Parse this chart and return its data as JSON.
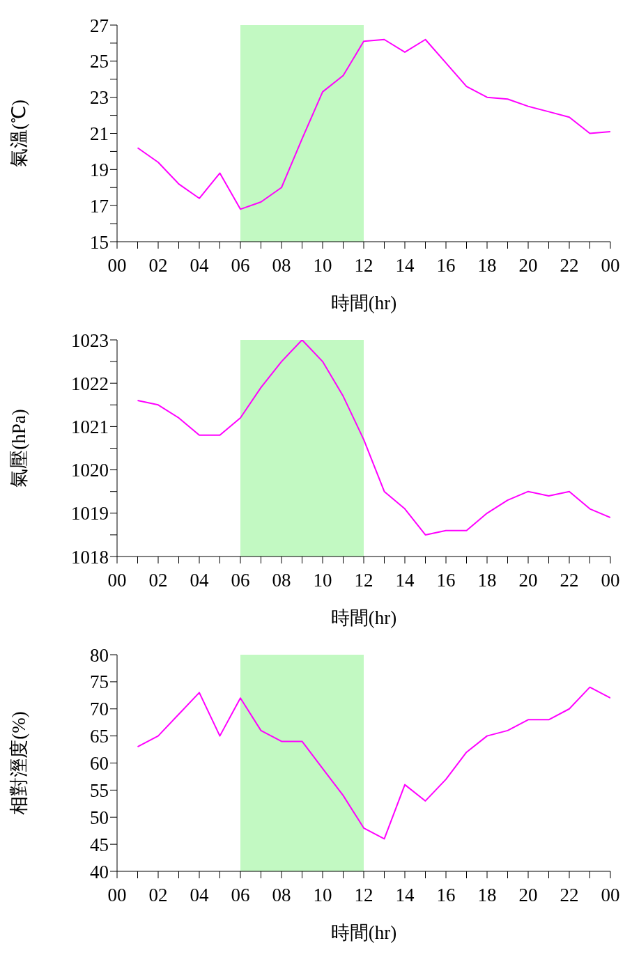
{
  "chart_data": [
    {
      "type": "line",
      "xlabel": "時間(hr)",
      "ylabel": "氣溫(℃)",
      "color": "#ff00ff",
      "marker": "none",
      "grid": false,
      "legend": false,
      "x": [
        1,
        2,
        3,
        4,
        5,
        6,
        7,
        8,
        9,
        10,
        11,
        12,
        13,
        14,
        15,
        16,
        17,
        18,
        19,
        20,
        21,
        22,
        23,
        24
      ],
      "values": [
        20.2,
        19.4,
        18.2,
        17.4,
        18.8,
        16.8,
        17.2,
        18.0,
        20.7,
        23.3,
        24.2,
        26.1,
        26.2,
        25.5,
        26.2,
        24.9,
        23.6,
        23.0,
        22.9,
        22.5,
        22.2,
        21.9,
        21.0,
        21.1
      ],
      "xlim": [
        0,
        24
      ],
      "xticks": [
        {
          "value": 0,
          "label": "00"
        },
        {
          "value": 1,
          "label": null
        },
        {
          "value": 2,
          "label": "02"
        },
        {
          "value": 3,
          "label": null
        },
        {
          "value": 4,
          "label": "04"
        },
        {
          "value": 5,
          "label": null
        },
        {
          "value": 6,
          "label": "06"
        },
        {
          "value": 7,
          "label": null
        },
        {
          "value": 8,
          "label": "08"
        },
        {
          "value": 9,
          "label": null
        },
        {
          "value": 10,
          "label": "10"
        },
        {
          "value": 11,
          "label": null
        },
        {
          "value": 12,
          "label": "12"
        },
        {
          "value": 13,
          "label": null
        },
        {
          "value": 14,
          "label": "14"
        },
        {
          "value": 15,
          "label": null
        },
        {
          "value": 16,
          "label": "16"
        },
        {
          "value": 17,
          "label": null
        },
        {
          "value": 18,
          "label": "18"
        },
        {
          "value": 19,
          "label": null
        },
        {
          "value": 20,
          "label": "20"
        },
        {
          "value": 21,
          "label": null
        },
        {
          "value": 22,
          "label": "22"
        },
        {
          "value": 23,
          "label": null
        },
        {
          "value": 24,
          "label": "00"
        }
      ],
      "ylim": [
        15,
        27
      ],
      "yticks": [
        15,
        {
          "value": 16,
          "label": null
        },
        17,
        {
          "value": 18,
          "label": null
        },
        19,
        {
          "value": 20,
          "label": null
        },
        21,
        {
          "value": 22,
          "label": null
        },
        23,
        {
          "value": 24,
          "label": null
        },
        25,
        {
          "value": 26,
          "label": null
        },
        27
      ],
      "bands": [
        {
          "axis": "x",
          "from": 6,
          "to": 12,
          "color": "#99f599"
        }
      ]
    },
    {
      "type": "line",
      "xlabel": "時間(hr)",
      "ylabel": "氣壓(hPa)",
      "color": "#ff00ff",
      "marker": "none",
      "grid": false,
      "legend": false,
      "x": [
        1,
        2,
        3,
        4,
        5,
        6,
        7,
        8,
        9,
        10,
        11,
        12,
        13,
        14,
        15,
        16,
        17,
        18,
        19,
        20,
        21,
        22,
        23,
        24
      ],
      "values": [
        1021.6,
        1021.5,
        1021.2,
        1020.8,
        1020.8,
        1021.2,
        1021.9,
        1022.5,
        1023.0,
        1022.5,
        1021.7,
        1020.7,
        1019.5,
        1019.1,
        1018.5,
        1018.6,
        1018.6,
        1019.0,
        1019.3,
        1019.5,
        1019.4,
        1019.5,
        1019.1,
        1018.9
      ],
      "xlim": [
        0,
        24
      ],
      "xticks": [
        {
          "value": 0,
          "label": "00"
        },
        {
          "value": 1,
          "label": null
        },
        {
          "value": 2,
          "label": "02"
        },
        {
          "value": 3,
          "label": null
        },
        {
          "value": 4,
          "label": "04"
        },
        {
          "value": 5,
          "label": null
        },
        {
          "value": 6,
          "label": "06"
        },
        {
          "value": 7,
          "label": null
        },
        {
          "value": 8,
          "label": "08"
        },
        {
          "value": 9,
          "label": null
        },
        {
          "value": 10,
          "label": "10"
        },
        {
          "value": 11,
          "label": null
        },
        {
          "value": 12,
          "label": "12"
        },
        {
          "value": 13,
          "label": null
        },
        {
          "value": 14,
          "label": "14"
        },
        {
          "value": 15,
          "label": null
        },
        {
          "value": 16,
          "label": "16"
        },
        {
          "value": 17,
          "label": null
        },
        {
          "value": 18,
          "label": "18"
        },
        {
          "value": 19,
          "label": null
        },
        {
          "value": 20,
          "label": "20"
        },
        {
          "value": 21,
          "label": null
        },
        {
          "value": 22,
          "label": "22"
        },
        {
          "value": 23,
          "label": null
        },
        {
          "value": 24,
          "label": "00"
        }
      ],
      "ylim": [
        1018,
        1023
      ],
      "yticks": [
        1018,
        {
          "value": 1018.5,
          "label": null
        },
        1019,
        {
          "value": 1019.5,
          "label": null
        },
        1020,
        {
          "value": 1020.5,
          "label": null
        },
        1021,
        {
          "value": 1021.5,
          "label": null
        },
        1022,
        {
          "value": 1022.5,
          "label": null
        },
        1023
      ],
      "bands": [
        {
          "axis": "x",
          "from": 6,
          "to": 12,
          "color": "#99f599"
        }
      ]
    },
    {
      "type": "line",
      "xlabel": "時間(hr)",
      "ylabel": "相對溼度(%)",
      "color": "#ff00ff",
      "marker": "none",
      "grid": false,
      "legend": false,
      "x": [
        1,
        2,
        3,
        4,
        5,
        6,
        7,
        8,
        9,
        10,
        11,
        12,
        13,
        14,
        15,
        16,
        17,
        18,
        19,
        20,
        21,
        22,
        23,
        24
      ],
      "values": [
        63,
        65,
        69,
        73,
        65,
        72,
        66,
        64,
        64,
        59,
        54,
        48,
        46,
        56,
        53,
        57,
        62,
        65,
        66,
        68,
        68,
        70,
        74,
        72
      ],
      "xlim": [
        0,
        24
      ],
      "xticks": [
        {
          "value": 0,
          "label": "00"
        },
        {
          "value": 1,
          "label": null
        },
        {
          "value": 2,
          "label": "02"
        },
        {
          "value": 3,
          "label": null
        },
        {
          "value": 4,
          "label": "04"
        },
        {
          "value": 5,
          "label": null
        },
        {
          "value": 6,
          "label": "06"
        },
        {
          "value": 7,
          "label": null
        },
        {
          "value": 8,
          "label": "08"
        },
        {
          "value": 9,
          "label": null
        },
        {
          "value": 10,
          "label": "10"
        },
        {
          "value": 11,
          "label": null
        },
        {
          "value": 12,
          "label": "12"
        },
        {
          "value": 13,
          "label": null
        },
        {
          "value": 14,
          "label": "14"
        },
        {
          "value": 15,
          "label": null
        },
        {
          "value": 16,
          "label": "16"
        },
        {
          "value": 17,
          "label": null
        },
        {
          "value": 18,
          "label": "18"
        },
        {
          "value": 19,
          "label": null
        },
        {
          "value": 20,
          "label": "20"
        },
        {
          "value": 21,
          "label": null
        },
        {
          "value": 22,
          "label": "22"
        },
        {
          "value": 23,
          "label": null
        },
        {
          "value": 24,
          "label": "00"
        }
      ],
      "ylim": [
        40,
        80
      ],
      "yticks": [
        40,
        45,
        50,
        55,
        60,
        65,
        70,
        75,
        80
      ],
      "bands": [
        {
          "axis": "x",
          "from": 6,
          "to": 12,
          "color": "#99f599"
        }
      ]
    }
  ]
}
